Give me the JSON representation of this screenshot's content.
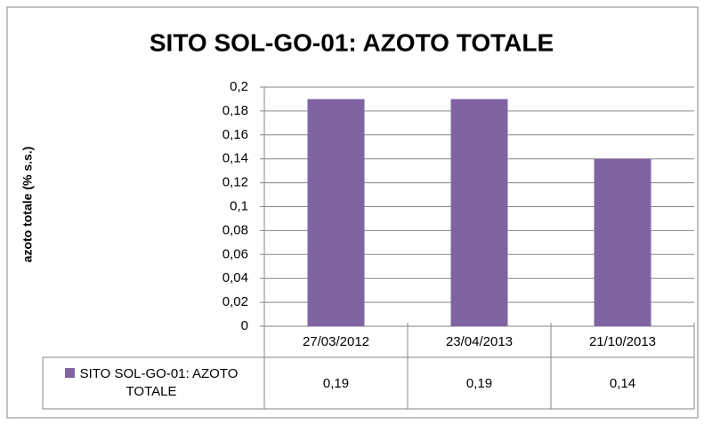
{
  "chart_data": {
    "type": "bar",
    "title": "SITO SOL-GO-01: AZOTO TOTALE",
    "y_label": "azoto totale (% s.s.)",
    "categories": [
      "27/03/2012",
      "23/04/2013",
      "21/10/2013"
    ],
    "series": [
      {
        "name": "SITO SOL-GO-01: AZOTO TOTALE",
        "color": "#8064a2",
        "values": [
          0.19,
          0.19,
          0.14
        ],
        "value_labels": [
          "0,19",
          "0,19",
          "0,14"
        ]
      }
    ],
    "ylim": [
      0,
      0.2
    ],
    "yticks": [
      0,
      {
        "value": 0.02,
        "label": "0,02"
      },
      {
        "value": 0.04,
        "label": "0,04"
      },
      {
        "value": 0.06,
        "label": "0,06"
      },
      {
        "value": 0.08,
        "label": "0,08"
      },
      {
        "value": 0.1,
        "label": "0,1"
      },
      {
        "value": 0.12,
        "label": "0,12"
      },
      {
        "value": 0.14,
        "label": "0,14"
      },
      {
        "value": 0.16,
        "label": "0,16"
      },
      {
        "value": 0.18,
        "label": "0,18"
      },
      {
        "value": 0.2,
        "label": "0,2"
      }
    ],
    "grid": true
  }
}
